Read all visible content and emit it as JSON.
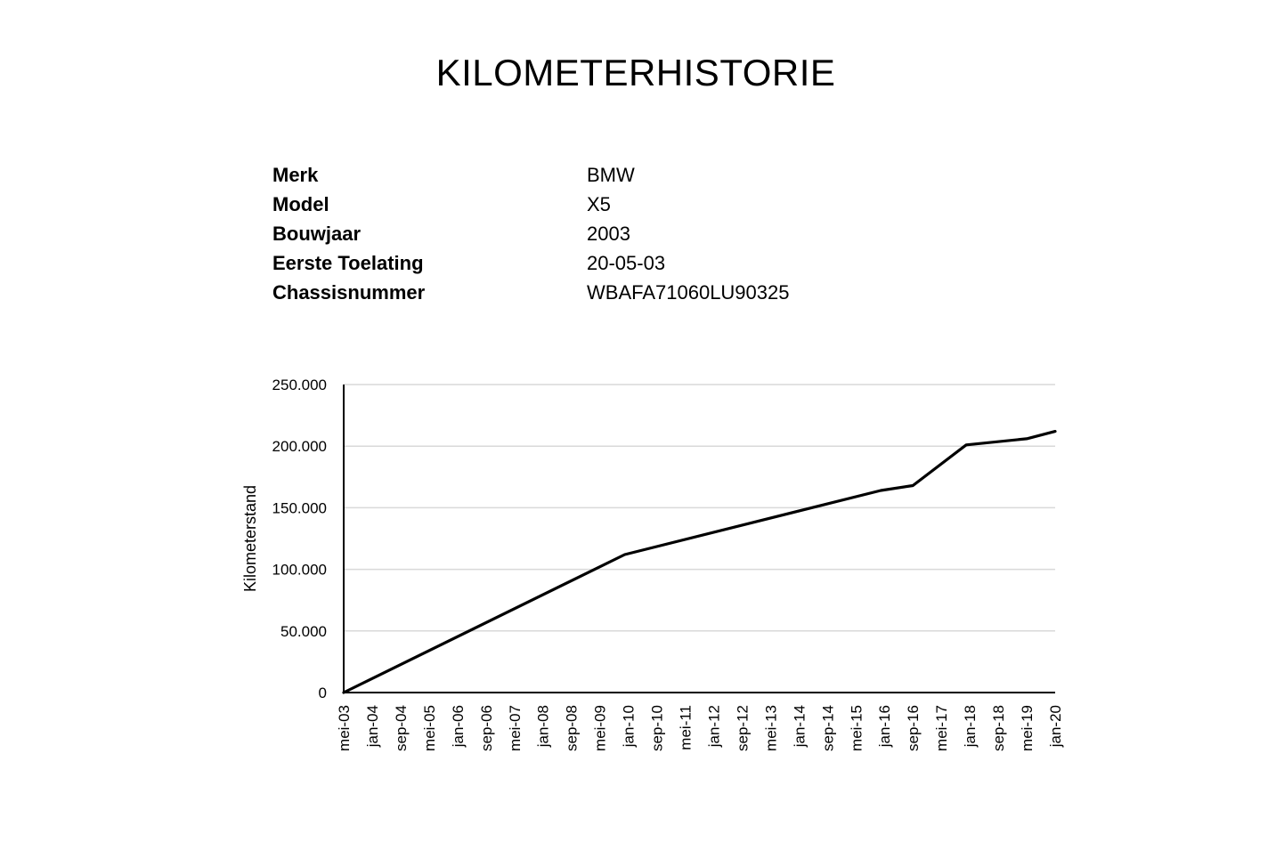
{
  "page": {
    "title": "KILOMETERHISTORIE"
  },
  "vehicle_info": [
    {
      "label": "Merk",
      "value": "BMW"
    },
    {
      "label": "Model",
      "value": "X5"
    },
    {
      "label": "Bouwjaar",
      "value": "2003"
    },
    {
      "label": "Eerste Toelating",
      "value": "20-05-03"
    },
    {
      "label": "Chassisnummer",
      "value": "WBAFA71060LU90325"
    }
  ],
  "chart_data": {
    "type": "line",
    "title": "",
    "xlabel": "",
    "ylabel": "Kilometerstand",
    "ylim": [
      0,
      250000
    ],
    "y_ticks": [
      {
        "value": 0,
        "label": "0"
      },
      {
        "value": 50000,
        "label": "50.000"
      },
      {
        "value": 100000,
        "label": "100.000"
      },
      {
        "value": 150000,
        "label": "150.000"
      },
      {
        "value": 200000,
        "label": "200.000"
      },
      {
        "value": 250000,
        "label": "250.000"
      }
    ],
    "x_range": [
      "2003-05",
      "2020-01"
    ],
    "x_ticks": [
      {
        "date": "2003-05",
        "label": "mei-03"
      },
      {
        "date": "2004-01",
        "label": "jan-04"
      },
      {
        "date": "2004-09",
        "label": "sep-04"
      },
      {
        "date": "2005-05",
        "label": "mei-05"
      },
      {
        "date": "2006-01",
        "label": "jan-06"
      },
      {
        "date": "2006-09",
        "label": "sep-06"
      },
      {
        "date": "2007-05",
        "label": "mei-07"
      },
      {
        "date": "2008-01",
        "label": "jan-08"
      },
      {
        "date": "2008-09",
        "label": "sep-08"
      },
      {
        "date": "2009-05",
        "label": "mei-09"
      },
      {
        "date": "2010-01",
        "label": "jan-10"
      },
      {
        "date": "2010-09",
        "label": "sep-10"
      },
      {
        "date": "2011-05",
        "label": "mei-11"
      },
      {
        "date": "2012-01",
        "label": "jan-12"
      },
      {
        "date": "2012-09",
        "label": "sep-12"
      },
      {
        "date": "2013-05",
        "label": "mei-13"
      },
      {
        "date": "2014-01",
        "label": "jan-14"
      },
      {
        "date": "2014-09",
        "label": "sep-14"
      },
      {
        "date": "2015-05",
        "label": "mei-15"
      },
      {
        "date": "2016-01",
        "label": "jan-16"
      },
      {
        "date": "2016-09",
        "label": "sep-16"
      },
      {
        "date": "2017-05",
        "label": "mei-17"
      },
      {
        "date": "2018-01",
        "label": "jan-18"
      },
      {
        "date": "2018-09",
        "label": "sep-18"
      },
      {
        "date": "2019-05",
        "label": "mei-19"
      },
      {
        "date": "2020-01",
        "label": "jan-20"
      }
    ],
    "grid": true,
    "legend": "none",
    "series": [
      {
        "color": "#000000",
        "points": [
          {
            "x": "2003-05",
            "y": 0
          },
          {
            "x": "2009-12",
            "y": 112000
          },
          {
            "x": "2015-12",
            "y": 164000
          },
          {
            "x": "2016-09",
            "y": 168000
          },
          {
            "x": "2017-12",
            "y": 201000
          },
          {
            "x": "2019-05",
            "y": 206000
          },
          {
            "x": "2020-01",
            "y": 212000
          }
        ]
      }
    ]
  }
}
